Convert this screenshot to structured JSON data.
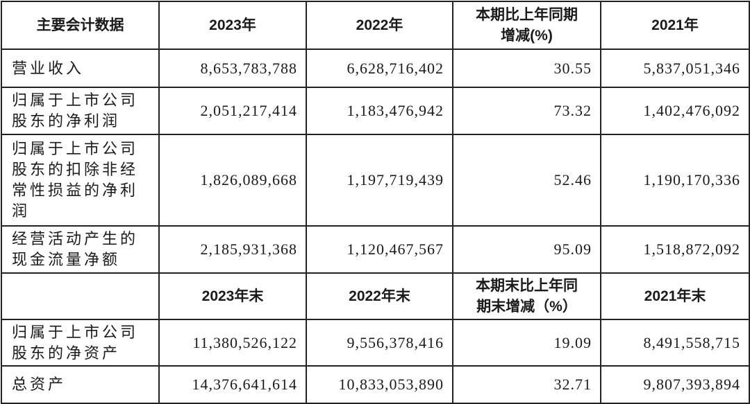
{
  "header": [
    "主要会计数据",
    "2023年",
    "2022年",
    "本期比上年同期增减(%)",
    "2021年"
  ],
  "rows": [
    {
      "label": "营业收入",
      "values": [
        "8,653,783,788",
        "6,628,716,402",
        "30.55",
        "5,837,051,346"
      ]
    },
    {
      "label": "归属于上市公司股东的净利润",
      "values": [
        "2,051,217,414",
        "1,183,476,942",
        "73.32",
        "1,402,476,092"
      ]
    },
    {
      "label": "归属于上市公司股东的扣除非经常性损益的净利润",
      "values": [
        "1,826,089,668",
        "1,197,719,439",
        "52.46",
        "1,190,170,336"
      ]
    },
    {
      "label": "经营活动产生的现金流量净额",
      "values": [
        "2,185,931,368",
        "1,120,467,567",
        "95.09",
        "1,518,872,092"
      ]
    }
  ],
  "header2": [
    "",
    "2023年末",
    "2022年末",
    "本期末比上年同期末增减（%）",
    "2021年末"
  ],
  "rows2": [
    {
      "label": "归属于上市公司股东的净资产",
      "values": [
        "11,380,526,122",
        "9,556,378,416",
        "19.09",
        "8,491,558,715"
      ]
    },
    {
      "label": "总资产",
      "values": [
        "14,376,641,614",
        "10,833,053,890",
        "32.71",
        "9,807,393,894"
      ]
    }
  ]
}
